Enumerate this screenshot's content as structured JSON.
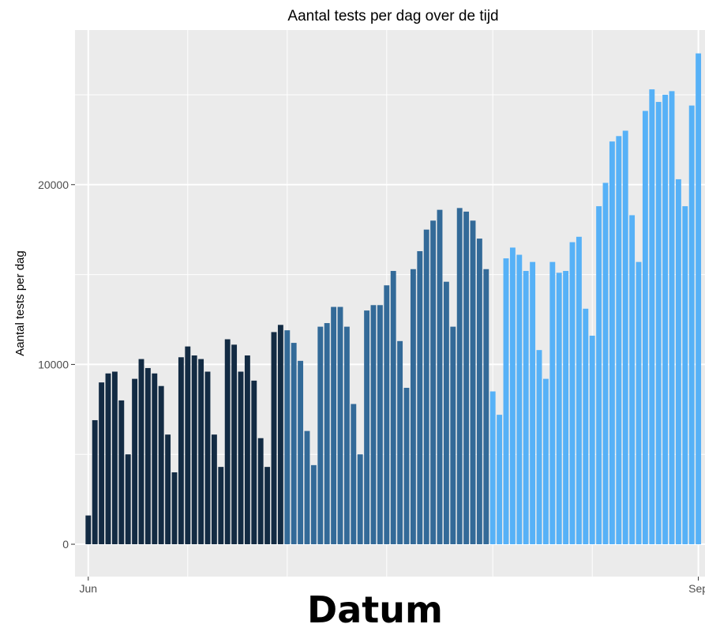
{
  "chart_data": {
    "type": "bar",
    "title": "Aantal tests per dag over de tijd",
    "xlabel": "Datum",
    "ylabel": "Aantal tests per dag",
    "x_start": "2020-06-01",
    "x_end": "2020-09-01",
    "xlim": [
      "2020-05-30",
      "2020-09-02"
    ],
    "ylim": [
      -1800,
      28600
    ],
    "yticks": [
      0,
      10000,
      20000
    ],
    "xticks": [
      {
        "label": "Jun",
        "date": "2020-06-01"
      },
      {
        "label": "Sep",
        "date": "2020-09-01"
      }
    ],
    "x_minor_gridlines": [
      "2020-06-16",
      "2020-07-01",
      "2020-07-16",
      "2020-08-01",
      "2020-08-16"
    ],
    "colors": {
      "background": "#ebebeb",
      "grid": "#ffffff",
      "june": "#132b43",
      "july": "#336a98",
      "august": "#56b1f7"
    },
    "grid": true,
    "legend": "none",
    "series": [
      {
        "values": [
          1600,
          6900,
          9000,
          9500,
          9600,
          8000,
          5000,
          9200,
          10300,
          9800,
          9500,
          8800,
          6100,
          4000,
          10400,
          11000,
          10500,
          10300,
          9600,
          6100,
          4300,
          11400,
          11100,
          9600,
          10500,
          9100,
          5900,
          4300,
          11800,
          12200,
          11900,
          11200,
          10200,
          6300,
          4400,
          12100,
          12300,
          13200,
          13200,
          12100,
          7800,
          5000,
          13000,
          13300,
          13300,
          14400,
          15200,
          11300,
          8700,
          15300,
          16300,
          17500,
          18000,
          18600,
          14600,
          12100,
          18700,
          18500,
          18000,
          17000,
          15300,
          8500,
          7200,
          15900,
          16500,
          16100,
          15200,
          15700,
          10800,
          9200,
          15700,
          15100,
          15200,
          16800,
          17100,
          13100,
          11600,
          18800,
          20100,
          22400,
          22700,
          23000,
          18300,
          15700,
          24100,
          25300,
          24600,
          25000,
          25200,
          20300,
          18800,
          24400,
          27300
        ]
      }
    ]
  }
}
